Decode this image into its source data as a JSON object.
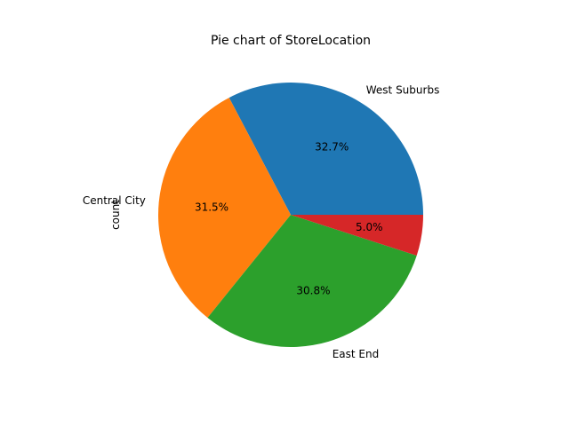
{
  "chart_data": {
    "type": "pie",
    "title": "Pie chart of StoreLocation",
    "ylabel": "count",
    "start_angle_deg": 0,
    "direction": "counterclockwise",
    "slices": [
      {
        "label": "West Suburbs",
        "value": 32.7,
        "pct_label": "32.7%",
        "color": "#1f77b4"
      },
      {
        "label": "Central City",
        "value": 31.5,
        "pct_label": "31.5%",
        "color": "#ff7f0e"
      },
      {
        "label": "East End",
        "value": 30.8,
        "pct_label": "30.8%",
        "color": "#2ca02c"
      },
      {
        "label": "",
        "value": 5.0,
        "pct_label": "5.0%",
        "color": "#d62728"
      }
    ]
  }
}
